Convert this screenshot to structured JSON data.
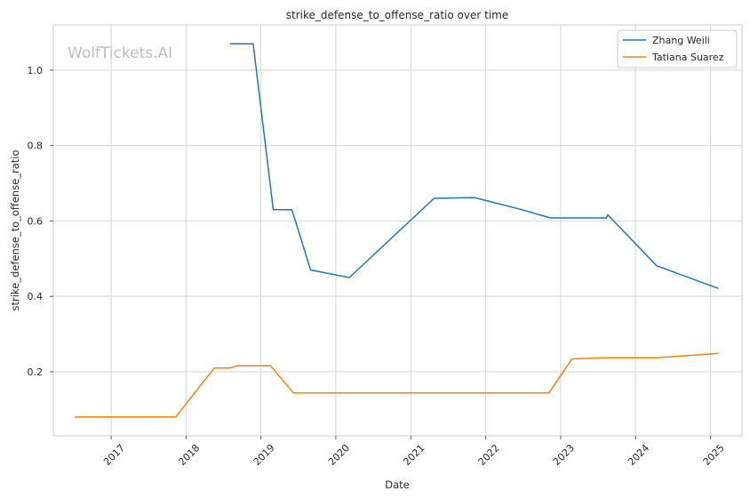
{
  "chart_data": {
    "type": "line",
    "title": "strike_defense_to_offense_ratio over time",
    "xlabel": "Date",
    "ylabel": "strike_defense_to_offense_ratio",
    "watermark": "WolfTickets.AI",
    "xlim": [
      "2016-03-25",
      "2025-06-03"
    ],
    "ylim": [
      0.03,
      1.12
    ],
    "x_ticks": [
      "2017",
      "2018",
      "2019",
      "2020",
      "2021",
      "2022",
      "2023",
      "2024",
      "2025"
    ],
    "y_ticks": [
      "0.2",
      "0.4",
      "0.6",
      "0.8",
      "1.0"
    ],
    "grid": true,
    "legend_position": "top-right",
    "series": [
      {
        "name": "Zhang Weili",
        "color": "#1f77b4",
        "points": [
          {
            "x": "2018-08-04",
            "y": 1.07
          },
          {
            "x": "2018-11-24",
            "y": 1.07
          },
          {
            "x": "2019-03-02",
            "y": 0.63
          },
          {
            "x": "2019-06-01",
            "y": 0.63
          },
          {
            "x": "2019-08-31",
            "y": 0.47
          },
          {
            "x": "2020-03-07",
            "y": 0.45
          },
          {
            "x": "2021-04-24",
            "y": 0.66
          },
          {
            "x": "2021-11-06",
            "y": 0.662
          },
          {
            "x": "2022-06-11",
            "y": 0.632
          },
          {
            "x": "2022-11-12",
            "y": 0.608
          },
          {
            "x": "2023-08-12",
            "y": 0.608
          },
          {
            "x": "2023-08-19",
            "y": 0.616
          },
          {
            "x": "2024-04-13",
            "y": 0.481
          },
          {
            "x": "2025-02-08",
            "y": 0.421
          }
        ]
      },
      {
        "name": "Tatiana Suarez",
        "color": "#ff7f0e",
        "points": [
          {
            "x": "2016-07-08",
            "y": 0.08
          },
          {
            "x": "2017-11-11",
            "y": 0.08
          },
          {
            "x": "2018-05-19",
            "y": 0.21
          },
          {
            "x": "2018-08-04",
            "y": 0.21
          },
          {
            "x": "2018-09-08",
            "y": 0.216
          },
          {
            "x": "2019-02-17",
            "y": 0.216
          },
          {
            "x": "2019-06-08",
            "y": 0.144
          },
          {
            "x": "2022-11-05",
            "y": 0.144
          },
          {
            "x": "2023-02-25",
            "y": 0.234
          },
          {
            "x": "2023-08-05",
            "y": 0.237
          },
          {
            "x": "2024-04-13",
            "y": 0.237
          },
          {
            "x": "2025-02-08",
            "y": 0.249
          }
        ]
      }
    ]
  }
}
